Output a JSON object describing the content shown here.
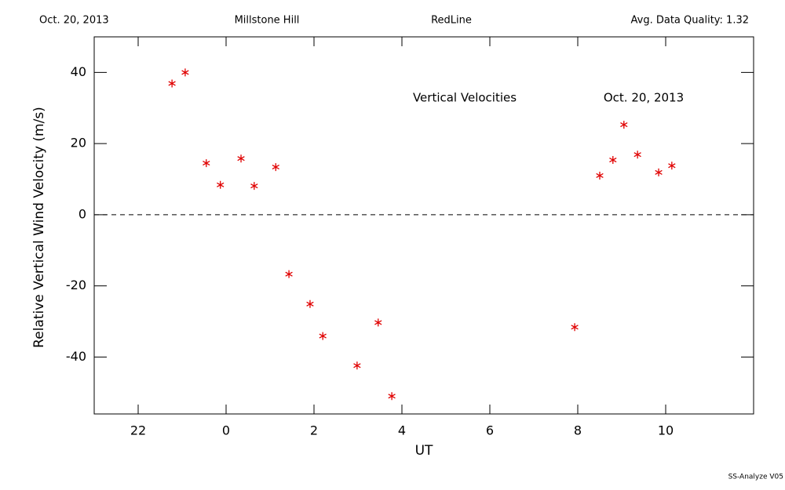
{
  "header": {
    "left": "Oct. 20, 2013",
    "center_left": "Millstone Hill",
    "center_right": "RedLine",
    "right": "Avg. Data Quality: 1.32"
  },
  "footer": "SS-Analyze V05",
  "chart_data": {
    "type": "scatter",
    "annotations": [
      "Vertical Velocities",
      "Oct. 20, 2013"
    ],
    "xlabel": "UT",
    "ylabel": "Relative Vertical Wind Velocity (m/s)",
    "x": [
      -1.23,
      -0.93,
      -0.45,
      -0.13,
      0.34,
      0.64,
      1.13,
      1.43,
      1.91,
      2.2,
      2.98,
      3.46,
      3.77,
      7.93,
      8.5,
      8.8,
      9.05,
      9.36,
      9.84,
      10.14
    ],
    "series": [
      {
        "color": "#e00000",
        "values": [
          36.9,
          40,
          14.5,
          8.4,
          15.8,
          8.1,
          13.4,
          -16.7,
          -25.1,
          -34.1,
          -42.4,
          -30.3,
          -51,
          -31.6,
          11,
          15.4,
          25.3,
          16.9,
          11.9,
          13.8
        ]
      }
    ],
    "xlim": [
      -3,
      12
    ],
    "xticks": [
      {
        "value": -2,
        "label": "22"
      },
      0,
      2,
      4,
      6,
      8,
      10
    ],
    "ylim": [
      -56,
      50
    ],
    "yticks": [
      -40,
      -20,
      0,
      20,
      40
    ],
    "hline": 0
  }
}
